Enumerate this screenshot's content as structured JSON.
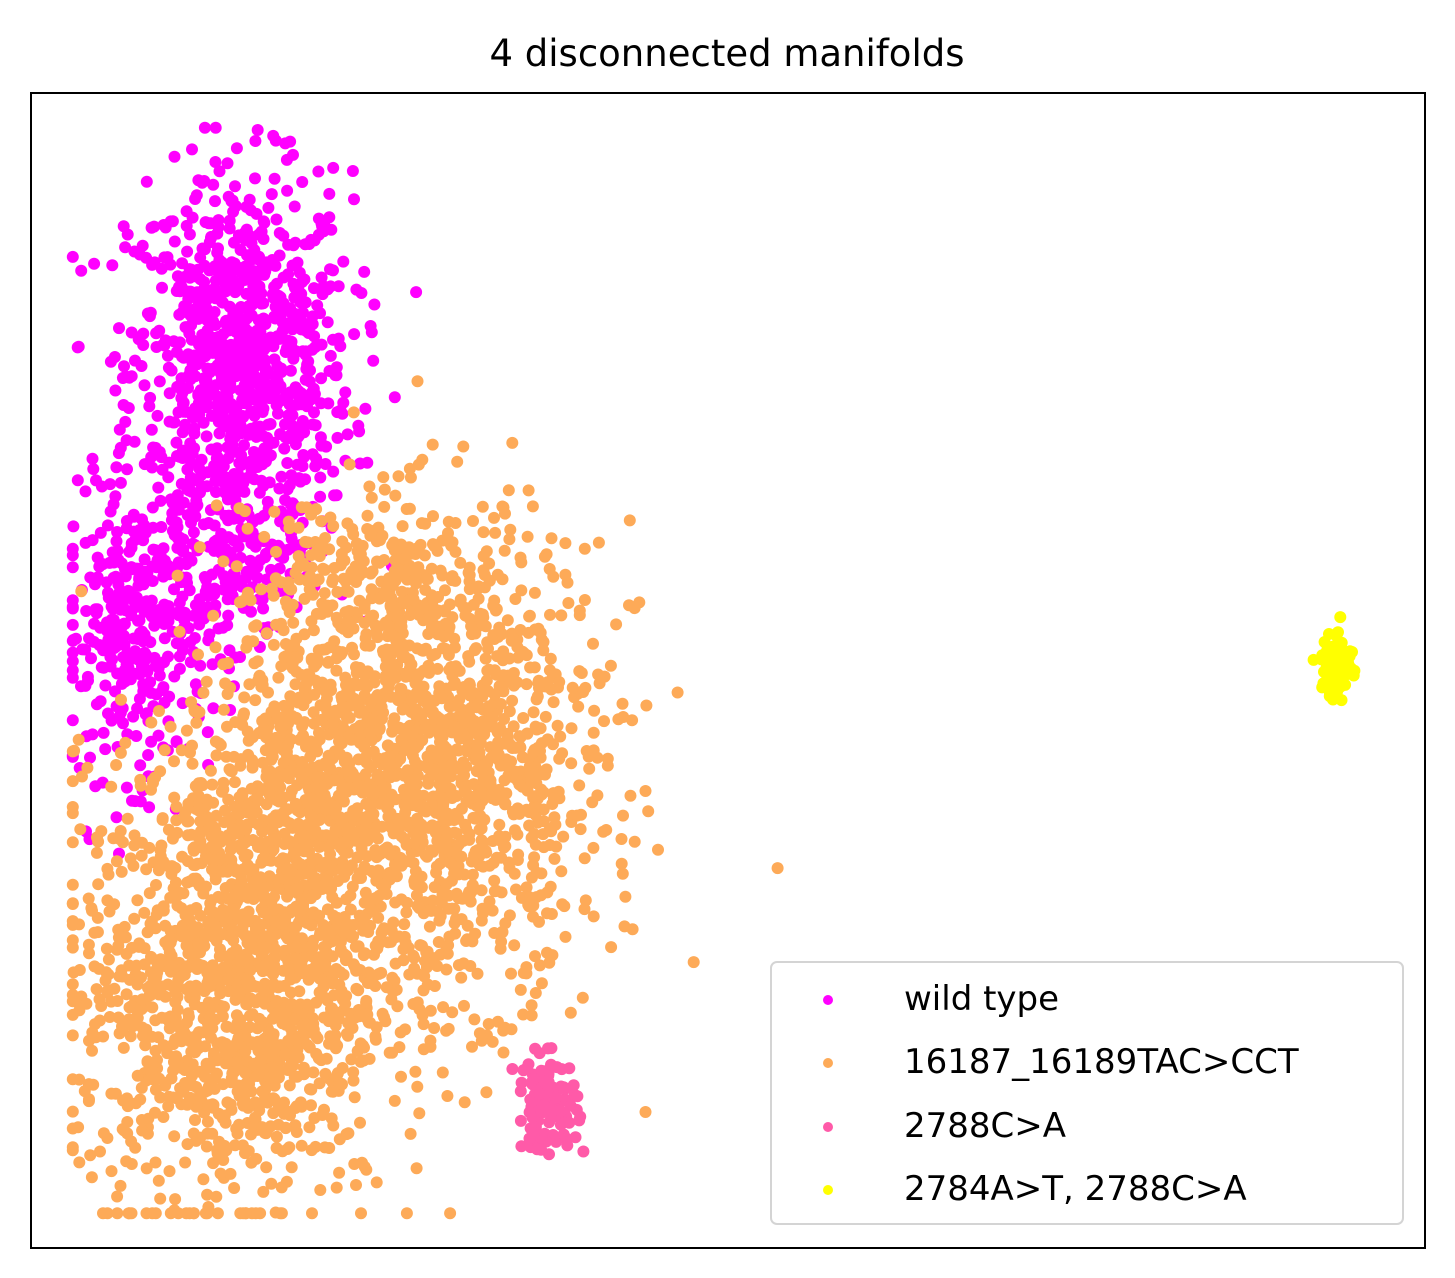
{
  "chart_data": {
    "type": "scatter",
    "title": "4 disconnected manifolds",
    "xlabel": "",
    "ylabel": "",
    "xlim": [
      0,
      100
    ],
    "ylim": [
      0,
      100
    ],
    "ticks": false,
    "grid": false,
    "legend_position": "lower-right",
    "series": [
      {
        "name": "wild type",
        "color": "#ff00ff",
        "clusters": [
          {
            "cx": 15.0,
            "cy": 76.0,
            "sx": 4.0,
            "sy": 8.5,
            "n": 950
          },
          {
            "cx": 7.5,
            "cy": 53.0,
            "sx": 2.6,
            "sy": 6.0,
            "n": 330
          },
          {
            "cx": 14.0,
            "cy": 58.0,
            "sx": 2.8,
            "sy": 3.5,
            "n": 120
          }
        ]
      },
      {
        "name": "16187_16189TAC>CCT",
        "color": "#fdaa58",
        "clusters": [
          {
            "cx": 14.5,
            "cy": 23.0,
            "sx": 5.5,
            "sy": 9.5,
            "n": 1400
          },
          {
            "cx": 30.0,
            "cy": 42.0,
            "sx": 5.5,
            "sy": 10.0,
            "n": 1300
          },
          {
            "cx": 20.0,
            "cy": 40.0,
            "sx": 4.5,
            "sy": 8.5,
            "n": 650
          },
          {
            "cx": 24.0,
            "cy": 58.0,
            "sx": 4.0,
            "sy": 3.5,
            "n": 160
          }
        ]
      },
      {
        "name": "2788C>A",
        "color": "#ff5aa8",
        "clusters": [
          {
            "cx": 37.0,
            "cy": 12.5,
            "sx": 1.1,
            "sy": 2.0,
            "n": 120
          }
        ]
      },
      {
        "name": "2784A>T, 2788C>A",
        "color": "#ffff00",
        "clusters": [
          {
            "cx": 93.7,
            "cy": 50.5,
            "sx": 0.55,
            "sy": 1.6,
            "n": 90
          }
        ]
      }
    ]
  }
}
